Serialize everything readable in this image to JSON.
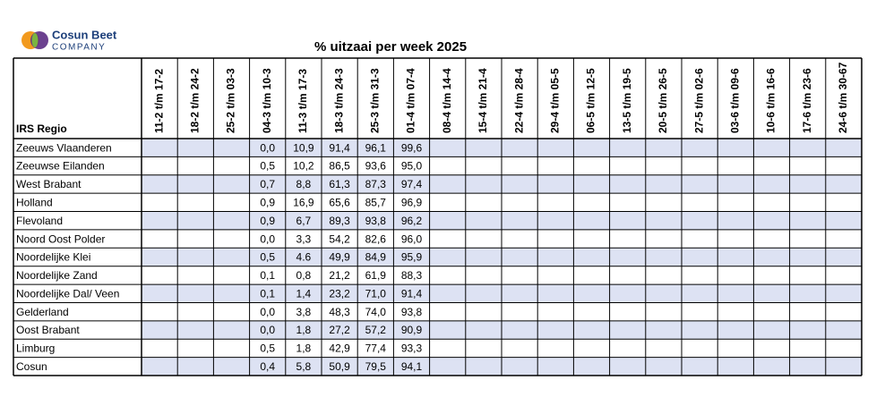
{
  "logo": {
    "line1": "Cosun Beet",
    "line2": "COMPANY"
  },
  "title": "% uitzaai per week 2025",
  "table": {
    "corner": "IRS Regio",
    "columns": [
      "11-2 t/m 17-2",
      "18-2 t/m 24-2",
      "25-2 t/m 03-3",
      "04-3 t/m 10-3",
      "11-3 t/m 17-3",
      "18-3 t/m 24-3",
      "25-3 t/m 31-3",
      "01-4 t/m 07-4",
      "08-4 t/m 14-4",
      "15-4 t/m 21-4",
      "22-4 t/m 28-4",
      "29-4 t/m 05-5",
      "06-5 t/m 12-5",
      "13-5 t/m 19-5",
      "20-5 t/m 26-5",
      "27-5 t/m 02-6",
      "03-6 t/m 09-6",
      "10-6 t/m 16-6",
      "17-6 t/m 23-6",
      "24-6 t/m 30-67"
    ],
    "rows": [
      {
        "region": "Zeeuws Vlaanderen",
        "cells": [
          null,
          null,
          null,
          "0,0",
          "10,9",
          "91,4",
          "96,1",
          "99,6",
          null,
          null,
          null,
          null,
          null,
          null,
          null,
          null,
          null,
          null,
          null,
          null
        ]
      },
      {
        "region": "Zeeuwse Eilanden",
        "cells": [
          null,
          null,
          null,
          "0,5",
          "10,2",
          "86,5",
          "93,6",
          "95,0",
          null,
          null,
          null,
          null,
          null,
          null,
          null,
          null,
          null,
          null,
          null,
          null
        ]
      },
      {
        "region": "West Brabant",
        "cells": [
          null,
          null,
          null,
          "0,7",
          "8,8",
          "61,3",
          "87,3",
          "97,4",
          null,
          null,
          null,
          null,
          null,
          null,
          null,
          null,
          null,
          null,
          null,
          null
        ]
      },
      {
        "region": "Holland",
        "cells": [
          null,
          null,
          null,
          "0,9",
          "16,9",
          "65,6",
          "85,7",
          "96,9",
          null,
          null,
          null,
          null,
          null,
          null,
          null,
          null,
          null,
          null,
          null,
          null
        ]
      },
      {
        "region": "Flevoland",
        "cells": [
          null,
          null,
          null,
          "0,9",
          "6,7",
          "89,3",
          "93,8",
          "96,2",
          null,
          null,
          null,
          null,
          null,
          null,
          null,
          null,
          null,
          null,
          null,
          null
        ]
      },
      {
        "region": "Noord Oost Polder",
        "cells": [
          null,
          null,
          null,
          "0,0",
          "3,3",
          "54,2",
          "82,6",
          "96,0",
          null,
          null,
          null,
          null,
          null,
          null,
          null,
          null,
          null,
          null,
          null,
          null
        ]
      },
      {
        "region": "Noordelijke Klei",
        "cells": [
          null,
          null,
          null,
          "0,5",
          "4.6",
          "49,9",
          "84,9",
          "95,9",
          null,
          null,
          null,
          null,
          null,
          null,
          null,
          null,
          null,
          null,
          null,
          null
        ]
      },
      {
        "region": "Noordelijke Zand",
        "cells": [
          null,
          null,
          null,
          "0,1",
          "0,8",
          "21,2",
          "61,9",
          "88,3",
          null,
          null,
          null,
          null,
          null,
          null,
          null,
          null,
          null,
          null,
          null,
          null
        ]
      },
      {
        "region": "Noordelijke Dal/ Veen",
        "cells": [
          null,
          null,
          null,
          "0,1",
          "1,4",
          "23,2",
          "71,0",
          "91,4",
          null,
          null,
          null,
          null,
          null,
          null,
          null,
          null,
          null,
          null,
          null,
          null
        ]
      },
      {
        "region": "Gelderland",
        "cells": [
          null,
          null,
          null,
          "0,0",
          "3,8",
          "48,3",
          "74,0",
          "93,8",
          null,
          null,
          null,
          null,
          null,
          null,
          null,
          null,
          null,
          null,
          null,
          null
        ]
      },
      {
        "region": "Oost Brabant",
        "cells": [
          null,
          null,
          null,
          "0,0",
          "1,8",
          "27,2",
          "57,2",
          "90,9",
          null,
          null,
          null,
          null,
          null,
          null,
          null,
          null,
          null,
          null,
          null,
          null
        ]
      },
      {
        "region": "Limburg",
        "cells": [
          null,
          null,
          null,
          "0,5",
          "1,8",
          "42,9",
          "77,4",
          "93,3",
          null,
          null,
          null,
          null,
          null,
          null,
          null,
          null,
          null,
          null,
          null,
          null
        ]
      },
      {
        "region": "Cosun",
        "cells": [
          null,
          null,
          null,
          "0,4",
          "5,8",
          "50,9",
          "79,5",
          "94,1",
          null,
          null,
          null,
          null,
          null,
          null,
          null,
          null,
          null,
          null,
          null,
          null
        ]
      }
    ]
  }
}
